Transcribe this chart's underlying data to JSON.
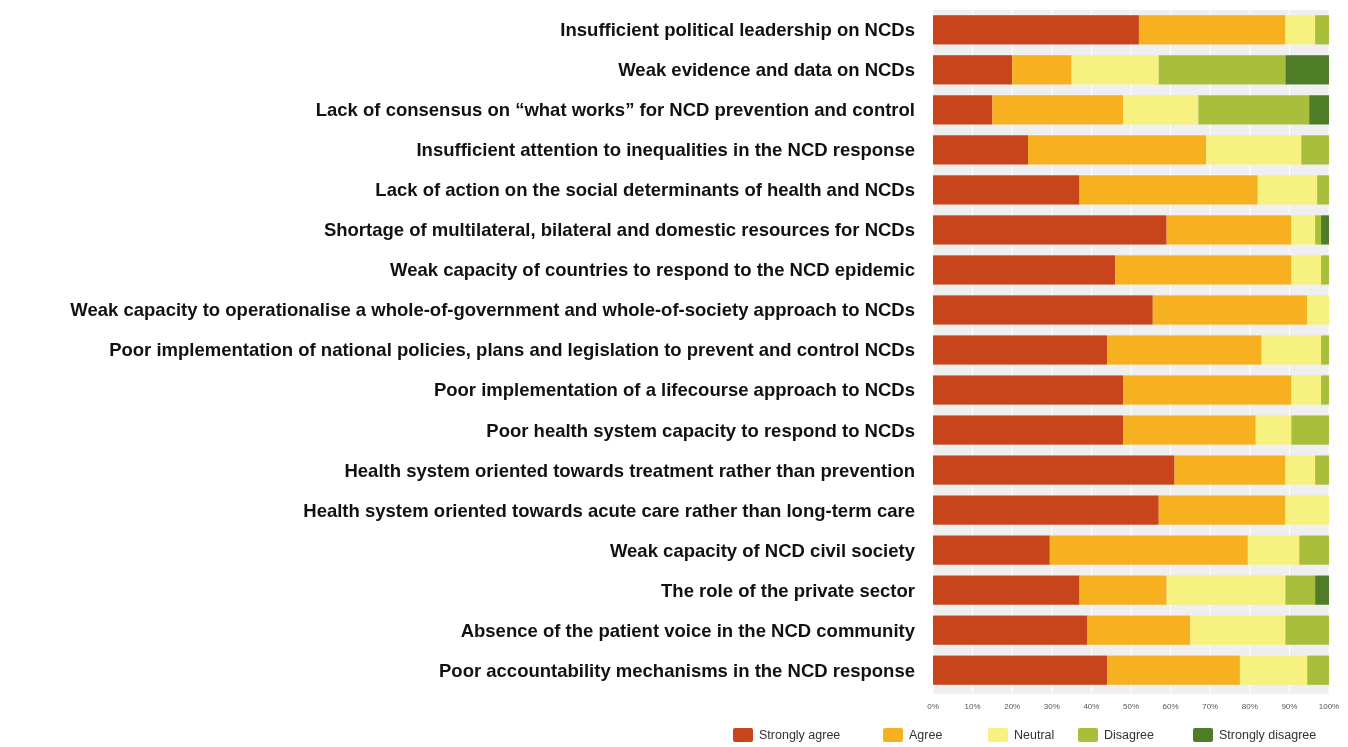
{
  "chart_data": {
    "type": "bar",
    "orientation": "horizontal",
    "stacked": true,
    "categories": [
      "Insufficient political leadership on NCDs",
      "Weak evidence and data on NCDs",
      "Lack of consensus on “what works” for NCD prevention and control",
      "Insufficient attention to inequalities in the NCD response",
      "Lack of action on the social determinants of health and NCDs",
      "Shortage of multilateral, bilateral and domestic resources for NCDs",
      "Weak capacity of countries to respond to the NCD epidemic",
      "Weak capacity to operationalise a whole-of-government and whole-of-society approach to NCDs",
      "Poor implementation of national policies, plans and legislation to prevent and control NCDs",
      "Poor implementation of a lifecourse approach to NCDs",
      "Poor health system capacity to respond to NCDs",
      "Health system oriented towards treatment rather than prevention",
      "Health system oriented towards acute care rather than long-term care",
      "Weak capacity of NCD civil society",
      "The role of the private sector",
      "Absence of the patient voice in the NCD community",
      "Poor accountability mechanisms in the NCD response"
    ],
    "series": [
      {
        "name": "Strongly agree",
        "color": "#c8441a",
        "values": [
          52,
          20,
          15,
          24,
          37,
          59,
          46,
          55.5,
          44,
          48,
          48,
          61,
          57,
          29.5,
          37,
          39,
          44
        ]
      },
      {
        "name": "Agree",
        "color": "#f7b020",
        "values": [
          37,
          15,
          33,
          45,
          45,
          31.5,
          44.5,
          39,
          39,
          42.5,
          33.5,
          28,
          32,
          50,
          22,
          26,
          33.5
        ]
      },
      {
        "name": "Neutral",
        "color": "#f7f27f",
        "values": [
          7.5,
          22,
          19,
          24,
          15,
          6,
          7.5,
          5.5,
          15,
          7.5,
          9,
          7.5,
          11,
          13,
          30,
          24,
          17
        ]
      },
      {
        "name": "Disagree",
        "color": "#a9be3a",
        "values": [
          3.5,
          32,
          28,
          7,
          3,
          1.5,
          2,
          0,
          2,
          2,
          9.5,
          3.5,
          0,
          7.5,
          7.5,
          11,
          5.5
        ]
      },
      {
        "name": "Strongly disagree",
        "color": "#4f7c27",
        "values": [
          0,
          11,
          5,
          0,
          0,
          2,
          0,
          0,
          0,
          0,
          0,
          0,
          0,
          0,
          3.5,
          0,
          0
        ]
      }
    ],
    "xlim": [
      0,
      100
    ],
    "xticks": [
      {
        "value": 0,
        "label": "0%"
      },
      {
        "value": 10,
        "label": "10%"
      },
      {
        "value": 20,
        "label": "20%"
      },
      {
        "value": 30,
        "label": "30%"
      },
      {
        "value": 40,
        "label": "40%"
      },
      {
        "value": 50,
        "label": "50%"
      },
      {
        "value": 60,
        "label": "60%"
      },
      {
        "value": 70,
        "label": "70%"
      },
      {
        "value": 80,
        "label": "80%"
      },
      {
        "value": 90,
        "label": "90%"
      },
      {
        "value": 100,
        "label": "100%"
      }
    ],
    "grid": "x",
    "legend": "bottom"
  }
}
